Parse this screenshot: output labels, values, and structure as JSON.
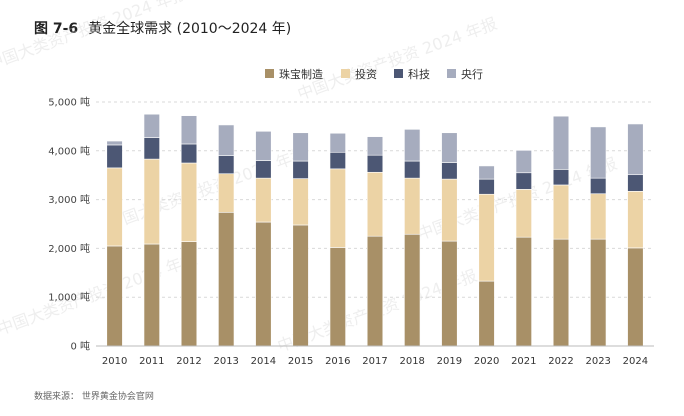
{
  "title": {
    "number": "图 7-6",
    "text": "黄金全球需求 (2010～2024 年)"
  },
  "source": "数据来源：  世界黄金协会官网",
  "watermark": "中国大类资产投资 2024 年报",
  "colors": {
    "jewelry": "#a89067",
    "investment": "#ecd3a5",
    "technology": "#4c5774",
    "central_bank": "#a6acbe",
    "grid": "#d9d9d9"
  },
  "chart_data": {
    "type": "bar",
    "stacked": true,
    "title": "黄金全球需求 (2010～2024 年)",
    "categories": [
      "2010",
      "2011",
      "2012",
      "2013",
      "2014",
      "2015",
      "2016",
      "2017",
      "2018",
      "2019",
      "2020",
      "2021",
      "2022",
      "2023",
      "2024"
    ],
    "series": [
      {
        "name": "珠宝制造",
        "color_key": "jewelry",
        "values": [
          2050,
          2090,
          2140,
          2740,
          2540,
          2480,
          2020,
          2250,
          2290,
          2150,
          1330,
          2230,
          2190,
          2190,
          2010
        ]
      },
      {
        "name": "投资",
        "color_key": "investment",
        "values": [
          1600,
          1740,
          1610,
          790,
          900,
          950,
          1610,
          1310,
          1150,
          1270,
          1780,
          980,
          1110,
          930,
          1160
        ]
      },
      {
        "name": "科技",
        "color_key": "technology",
        "values": [
          470,
          440,
          390,
          370,
          360,
          360,
          340,
          350,
          350,
          340,
          310,
          340,
          320,
          320,
          340
        ]
      },
      {
        "name": "央行",
        "color_key": "central_bank",
        "values": [
          80,
          480,
          580,
          630,
          600,
          580,
          390,
          380,
          650,
          610,
          270,
          460,
          1090,
          1050,
          1040
        ]
      }
    ],
    "ylim": [
      0,
      5000
    ],
    "yticks": [
      0,
      1000,
      2000,
      3000,
      4000,
      5000
    ],
    "ytick_labels": [
      "0 吨",
      "1,000 吨",
      "2,000 吨",
      "3,000 吨",
      "4,000 吨",
      "5,000 吨"
    ],
    "legend_position": "top-right"
  }
}
